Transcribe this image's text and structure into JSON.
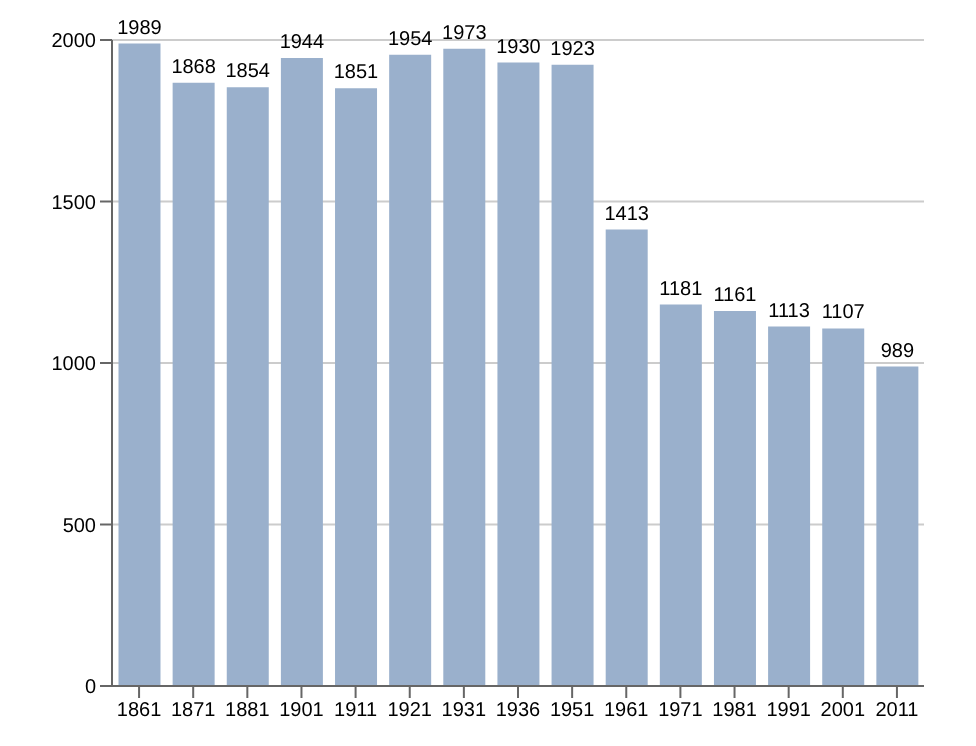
{
  "chart_data": {
    "type": "bar",
    "categories": [
      "1861",
      "1871",
      "1881",
      "1901",
      "1911",
      "1921",
      "1931",
      "1936",
      "1951",
      "1961",
      "1971",
      "1981",
      "1991",
      "2001",
      "2011"
    ],
    "values": [
      1989,
      1868,
      1854,
      1944,
      1851,
      1954,
      1973,
      1930,
      1923,
      1413,
      1181,
      1161,
      1113,
      1107,
      989
    ],
    "color": "#9ab0cc",
    "ylim": [
      0,
      2000
    ],
    "yticks": [
      0,
      500,
      1000,
      1500,
      2000
    ],
    "grid": "y",
    "data_labels": true
  }
}
